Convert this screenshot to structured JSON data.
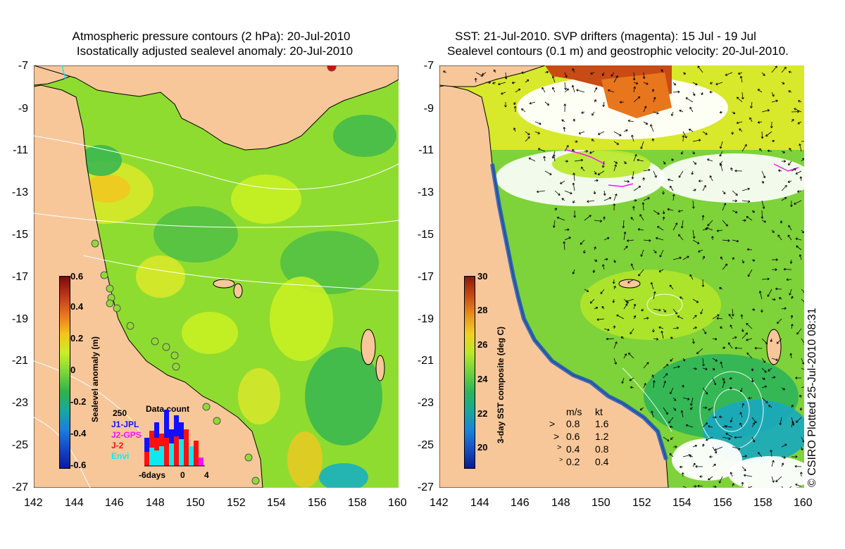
{
  "left_panel": {
    "title_line1": "Atmospheric pressure contours (2 hPa): 20-Jul-2010",
    "title_line2": "Isostatically adjusted sealevel anomaly: 20-Jul-2010",
    "colorbar": {
      "label": "Sealevel anomaly (m)",
      "ticks": [
        "0.6",
        "0.4",
        "0.2",
        "0",
        "-0.2",
        "-0.4",
        "-0.6"
      ],
      "colors": [
        "#7a0a0a",
        "#c0361b",
        "#e8761c",
        "#f5c51a",
        "#c8f024",
        "#7ad63a",
        "#2fb24a",
        "#16a8a0",
        "#1a7fe0",
        "#1447c8",
        "#0a1aa0"
      ]
    },
    "data_count": {
      "title": "Data count",
      "max_label": "250",
      "series": [
        {
          "name": "J1-JPL",
          "color": "#1010ff"
        },
        {
          "name": "J2-GPS",
          "color": "#ff10ff"
        },
        {
          "name": "J-2",
          "color": "#ff1010"
        },
        {
          "name": "Envi",
          "color": "#10e8f0"
        }
      ],
      "x_ticks": [
        "-6days",
        "0",
        "4"
      ]
    }
  },
  "right_panel": {
    "title_line1": "SST: 21-Jul-2010. SVP drifters (magenta): 15 Jul - 19 Jul",
    "title_line2": "Sealevel contours (0.1 m) and geostrophic velocity: 20-Jul-2010.",
    "colorbar": {
      "label": "3-day SST composite (deg C)",
      "ticks": [
        "30",
        "28",
        "26",
        "24",
        "22",
        "20"
      ],
      "colors": [
        "#8a1a0a",
        "#c84a14",
        "#e8901c",
        "#f0d020",
        "#b8e828",
        "#6ed23c",
        "#2eb45a",
        "#18a896",
        "#1b84d8",
        "#1550c0",
        "#0a1a90"
      ]
    },
    "velocity_legend": {
      "header_ms": "m/s",
      "header_kt": "kt",
      "rows": [
        {
          "ms": "0.8",
          "kt": "1.6"
        },
        {
          "ms": "0.6",
          "kt": "1.2"
        },
        {
          "ms": "0.4",
          "kt": "0.8"
        },
        {
          "ms": "0.2",
          "kt": "0.4"
        }
      ]
    }
  },
  "axes": {
    "y_ticks": [
      "-7",
      "-9",
      "-11",
      "-13",
      "-15",
      "-17",
      "-19",
      "-21",
      "-23",
      "-25",
      "-27"
    ],
    "x_ticks": [
      "142",
      "144",
      "146",
      "148",
      "150",
      "152",
      "154",
      "156",
      "158",
      "160"
    ]
  },
  "credit": "© CSIRO Plotted 25-Jul-2010 08:31",
  "colors": {
    "land": "#f7c79a",
    "sea_green": "#8fdc30",
    "white": "#ffffff"
  }
}
